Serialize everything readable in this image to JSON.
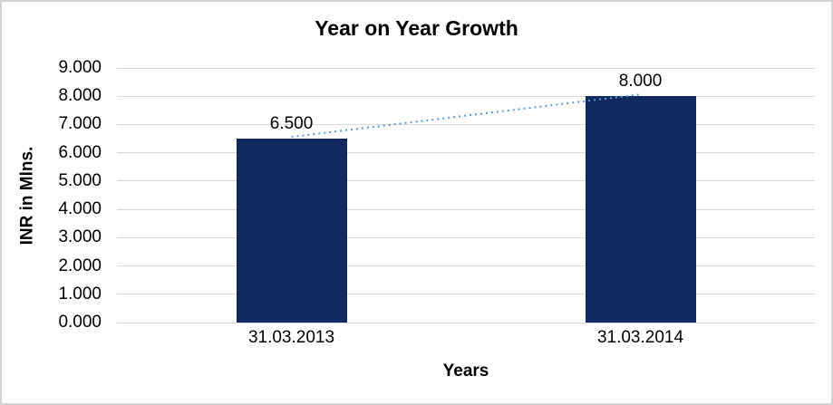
{
  "chart_data": {
    "type": "bar",
    "title": "Year on Year Growth",
    "xlabel": "Years",
    "ylabel": "INR in Mlns.",
    "categories": [
      "31.03.2013",
      "31.03.2014"
    ],
    "values": [
      6.5,
      8
    ],
    "value_labels": [
      "6.500",
      "8.000"
    ],
    "y_ticks": [
      {
        "label": "9.000",
        "value": 9
      },
      {
        "label": "8.000",
        "value": 8
      },
      {
        "label": "7.000",
        "value": 7
      },
      {
        "label": "6.000",
        "value": 6
      },
      {
        "label": "5.000",
        "value": 5
      },
      {
        "label": "4.000",
        "value": 4
      },
      {
        "label": "3.000",
        "value": 3
      },
      {
        "label": "2.000",
        "value": 2
      },
      {
        "label": "1.000",
        "value": 1
      },
      {
        "label": "0.000",
        "value": 0
      }
    ],
    "ylim": [
      0,
      9
    ],
    "grid": true,
    "legend": "none",
    "trendline": {
      "type": "linear",
      "style": "dotted",
      "between": [
        "31.03.2013",
        "31.03.2014"
      ]
    },
    "colors": {
      "bar": "#10295E",
      "trendline": "#5B9BD5",
      "gridline": "#D9D9D9",
      "text": "#000000",
      "frame_border": "#D3D3D3",
      "background": "#FFFFFF"
    }
  }
}
